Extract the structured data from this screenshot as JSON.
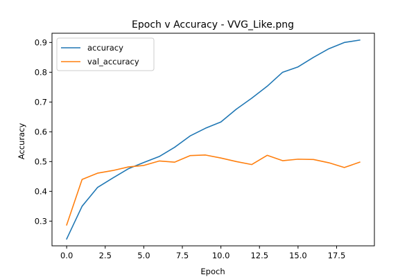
{
  "chart_data": {
    "type": "line",
    "title": "Epoch v Accuracy - VVG_Like.png",
    "xlabel": "Epoch",
    "ylabel": "Accuracy",
    "xlim": [
      -0.95,
      19.95
    ],
    "ylim": [
      0.217,
      0.931
    ],
    "xticks": [
      0.0,
      2.5,
      5.0,
      7.5,
      10.0,
      12.5,
      15.0,
      17.5
    ],
    "xtick_labels": [
      "0.0",
      "2.5",
      "5.0",
      "7.5",
      "10.0",
      "12.5",
      "15.0",
      "17.5"
    ],
    "yticks": [
      0.3,
      0.4,
      0.5,
      0.6,
      0.7,
      0.8,
      0.9
    ],
    "ytick_labels": [
      "0.3",
      "0.4",
      "0.5",
      "0.6",
      "0.7",
      "0.8",
      "0.9"
    ],
    "grid": false,
    "legend_position": "top-left",
    "x": [
      0,
      1,
      2,
      3,
      4,
      5,
      6,
      7,
      8,
      9,
      10,
      11,
      12,
      13,
      14,
      15,
      16,
      17,
      18,
      19
    ],
    "series": [
      {
        "name": "accuracy",
        "color": "#1f77b4",
        "values": [
          0.24,
          0.35,
          0.413,
          0.445,
          0.476,
          0.497,
          0.517,
          0.548,
          0.586,
          0.612,
          0.633,
          0.676,
          0.713,
          0.753,
          0.8,
          0.818,
          0.85,
          0.879,
          0.9,
          0.908
        ]
      },
      {
        "name": "val_accuracy",
        "color": "#ff7f0e",
        "values": [
          0.287,
          0.44,
          0.461,
          0.47,
          0.482,
          0.487,
          0.502,
          0.498,
          0.52,
          0.522,
          0.512,
          0.5,
          0.49,
          0.521,
          0.503,
          0.508,
          0.507,
          0.496,
          0.48,
          0.498
        ]
      }
    ]
  }
}
